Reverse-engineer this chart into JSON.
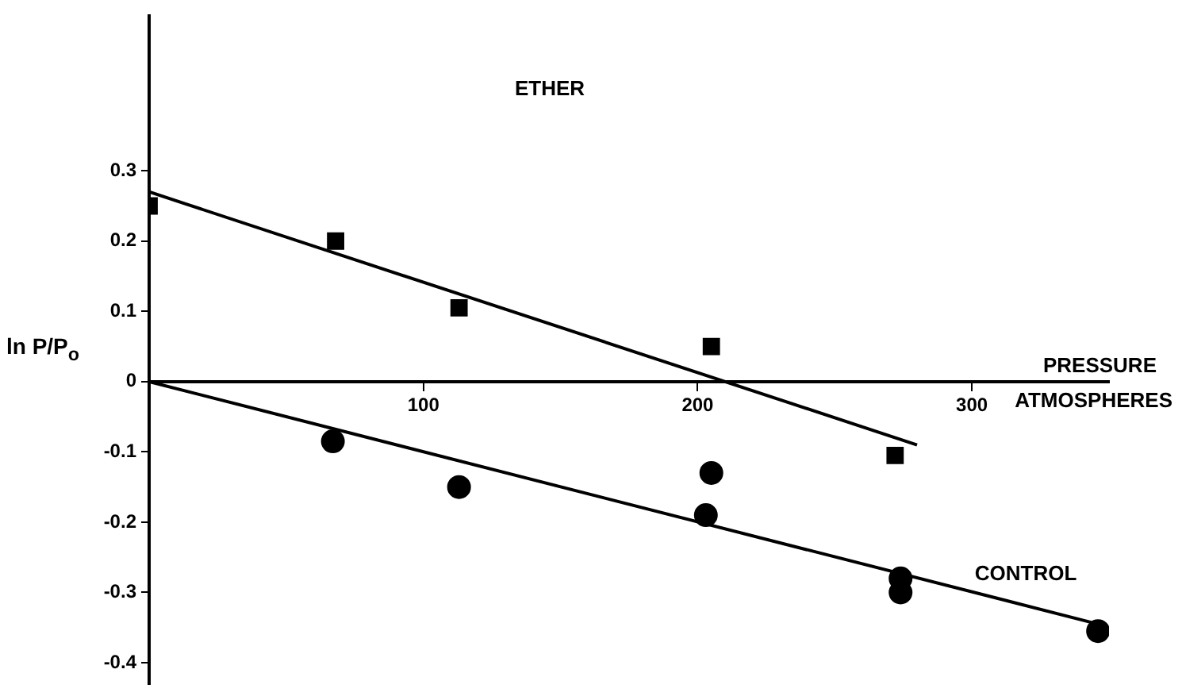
{
  "chart_data": {
    "type": "scatter",
    "title": "ETHER",
    "xlabel": "PRESSURE\nATMOSPHERES",
    "ylabel": "ln P/P$_{o}$",
    "xlim": [
      0,
      350
    ],
    "xticks": [
      100,
      200,
      300
    ],
    "ylim": [
      -0.43,
      0.52
    ],
    "yticks": [
      -0.4,
      -0.3,
      -0.2,
      -0.1,
      0,
      0.1,
      0.2,
      0.3
    ],
    "grid": false,
    "legend": false,
    "series": [
      {
        "marker": "square",
        "color": "#000000",
        "x": [
          0,
          68,
          113,
          205,
          272
        ],
        "values": [
          0.25,
          0.2,
          0.105,
          0.05,
          -0.105
        ]
      },
      {
        "marker": "circle",
        "color": "#000000",
        "x": [
          67,
          113,
          203,
          205,
          274,
          274,
          346
        ],
        "values": [
          -0.085,
          -0.15,
          -0.19,
          -0.13,
          -0.28,
          -0.3,
          -0.355
        ]
      },
      {
        "type": "line",
        "marker": "none",
        "line_style": "solid",
        "color": "#000000",
        "x": [
          0,
          280
        ],
        "values": [
          0.27,
          -0.09
        ]
      },
      {
        "type": "line",
        "name": "CONTROL",
        "marker": "none",
        "line_style": "solid",
        "color": "#000000",
        "x": [
          0,
          346
        ],
        "values": [
          0,
          -0.345
        ]
      }
    ]
  }
}
